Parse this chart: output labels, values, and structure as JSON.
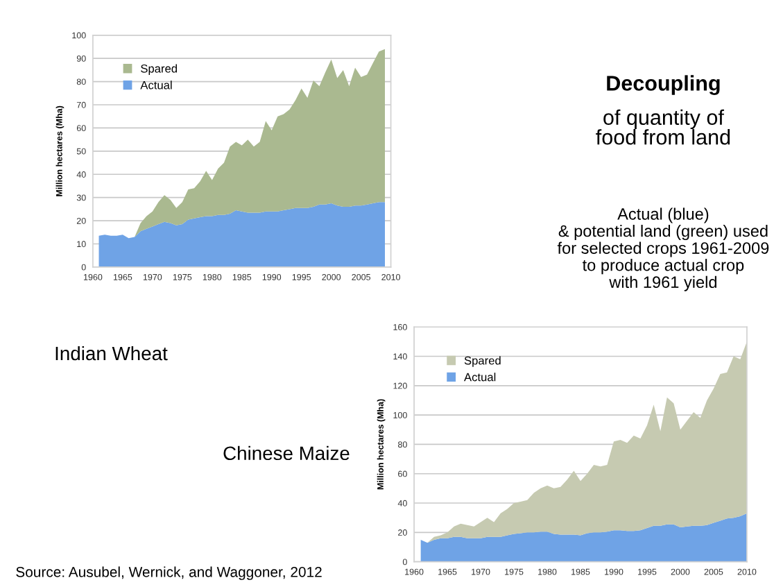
{
  "chart_data": [
    {
      "type": "area",
      "title": "Indian Wheat",
      "ylabel": "Million hectares (Mha)",
      "stacked": true,
      "legend": "top left",
      "grid": "y",
      "annotations": [
        "Decoupling",
        "of quantity of\nfood from land",
        "Actual (blue)\n& potential land (green) used\nfor selected crops 1961-2009\nto produce actual crop\nwith 1961 yield",
        "Source: Ausubel, Wernick, and Waggoner, 2012"
      ],
      "x": [
        1961,
        1962,
        1963,
        1964,
        1965,
        1966,
        1967,
        1968,
        1969,
        1970,
        1971,
        1972,
        1973,
        1974,
        1975,
        1976,
        1977,
        1978,
        1979,
        1980,
        1981,
        1982,
        1983,
        1984,
        1985,
        1986,
        1987,
        1988,
        1989,
        1990,
        1991,
        1992,
        1993,
        1994,
        1995,
        1996,
        1997,
        1998,
        1999,
        2000,
        2001,
        2002,
        2003,
        2004,
        2005,
        2006,
        2007,
        2008,
        2009
      ],
      "xlim": [
        1960,
        2010
      ],
      "xticks": [
        1960,
        1965,
        1970,
        1975,
        1980,
        1985,
        1990,
        1995,
        2000,
        2005,
        2010
      ],
      "ylim": [
        0,
        100
      ],
      "yticks": [
        0,
        10,
        20,
        30,
        40,
        50,
        60,
        70,
        80,
        90,
        100
      ],
      "series": [
        {
          "name": "Actual",
          "color": "#6fa3e6",
          "values": [
            13.5,
            14,
            13.5,
            13.5,
            14,
            12.5,
            13,
            15.5,
            16.5,
            17.5,
            18.5,
            19.5,
            19,
            18,
            18.5,
            20.5,
            21,
            21.5,
            22,
            22,
            22.5,
            22.5,
            23,
            24.5,
            24,
            23.5,
            23.5,
            23.5,
            24,
            24,
            24,
            24.5,
            25,
            25.5,
            25.5,
            25.5,
            26,
            27,
            27,
            27.5,
            26.5,
            26,
            26,
            26.5,
            26.5,
            27,
            27.5,
            28,
            28
          ]
        },
        {
          "name": "Spared",
          "color": "#aab990",
          "values": [
            0,
            0,
            0,
            0,
            0,
            0,
            0,
            3.5,
            5.5,
            6.5,
            9.5,
            11.5,
            10,
            7.5,
            9.5,
            13,
            13,
            15.5,
            19.5,
            15.5,
            20,
            22.5,
            29,
            29.5,
            28.5,
            31.5,
            28.5,
            30.5,
            39,
            35,
            41,
            41.5,
            43,
            46.5,
            51.5,
            47.5,
            54.5,
            51,
            57,
            62,
            55,
            59,
            52,
            59.5,
            55.5,
            56,
            60.5,
            65,
            66
          ]
        }
      ]
    },
    {
      "type": "area",
      "title": "Chinese Maize",
      "ylabel": "Million hectares (Mha)",
      "stacked": true,
      "legend": "top left",
      "grid": "y",
      "x": [
        1961,
        1962,
        1963,
        1964,
        1965,
        1966,
        1967,
        1968,
        1969,
        1970,
        1971,
        1972,
        1973,
        1974,
        1975,
        1976,
        1977,
        1978,
        1979,
        1980,
        1981,
        1982,
        1983,
        1984,
        1985,
        1986,
        1987,
        1988,
        1989,
        1990,
        1991,
        1992,
        1993,
        1994,
        1995,
        1996,
        1997,
        1998,
        1999,
        2000,
        2001,
        2002,
        2003,
        2004,
        2005,
        2006,
        2007,
        2008,
        2009,
        2010
      ],
      "xlim": [
        1960,
        2010
      ],
      "xticks": [
        1960,
        1965,
        1970,
        1975,
        1980,
        1985,
        1990,
        1995,
        2000,
        2005,
        2010
      ],
      "ylim": [
        0,
        160
      ],
      "yticks": [
        0,
        20,
        40,
        60,
        80,
        100,
        120,
        140,
        160
      ],
      "series": [
        {
          "name": "Actual",
          "color": "#6fa3e6",
          "values": [
            15,
            13,
            15,
            16,
            16,
            17,
            17,
            16,
            16,
            16,
            17,
            17,
            17,
            18,
            19,
            19.5,
            20,
            20,
            20.5,
            20.5,
            19,
            18.5,
            18.5,
            18.5,
            18,
            19.5,
            20,
            20,
            20.5,
            21.5,
            21.5,
            21,
            21,
            21.5,
            23,
            24.5,
            24.5,
            25.5,
            25.5,
            23.5,
            24,
            24.5,
            24.5,
            25,
            26.5,
            28,
            29.5,
            30,
            31,
            33
          ]
        },
        {
          "name": "Spared",
          "color": "#c6cab1",
          "values": [
            0,
            0,
            2,
            2,
            4,
            7,
            9,
            9,
            8,
            11,
            13,
            10,
            16,
            18,
            21,
            21.5,
            22,
            27,
            29.5,
            31.5,
            31,
            32.5,
            37.5,
            43.5,
            37,
            40.5,
            46,
            45,
            45.5,
            60.5,
            61.5,
            60,
            65,
            62.5,
            70,
            82.5,
            64.5,
            86.5,
            82.5,
            66.5,
            72,
            77.5,
            73.5,
            85,
            91.5,
            100,
            99.5,
            110,
            107,
            117
          ]
        }
      ]
    }
  ]
}
